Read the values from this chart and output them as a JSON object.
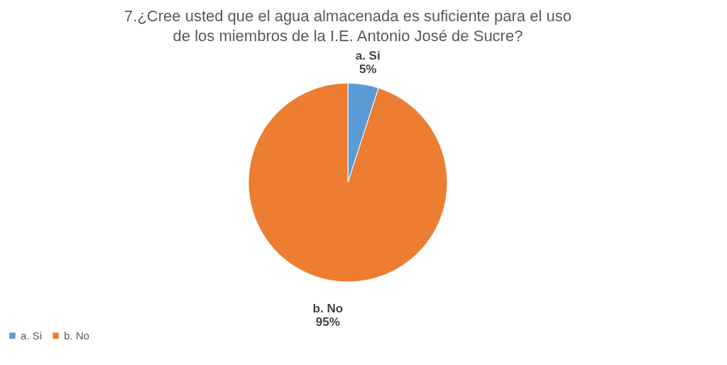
{
  "chart_data": {
    "type": "pie",
    "title": "7.¿Cree usted que el agua almacenada es suficiente para el uso de los miembros de la I.E. Antonio José de Sucre?",
    "categories": [
      "a. Si",
      "b.  No"
    ],
    "values": [
      5,
      95
    ],
    "colors": [
      "#5b9bd5",
      "#ed7d31"
    ],
    "value_labels": [
      "5%",
      "95%"
    ],
    "legend": "bottom"
  }
}
